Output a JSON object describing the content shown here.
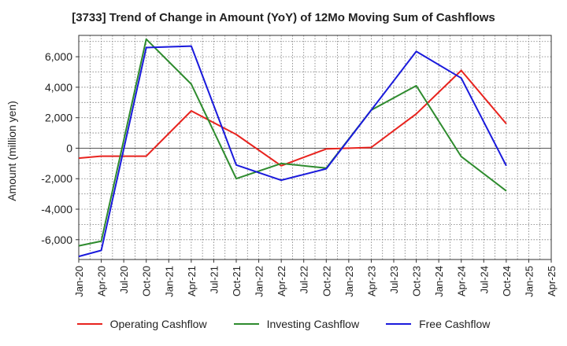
{
  "chart_data": {
    "type": "line",
    "title": "[3733]  Trend of Change in Amount (YoY) of 12Mo Moving Sum of Cashflows",
    "xlabel": "",
    "ylabel": "Amount (million yen)",
    "ylim": [
      -7300,
      7400
    ],
    "yticks": [
      -6000,
      -4000,
      -2000,
      0,
      2000,
      4000,
      6000
    ],
    "ytick_labels": [
      "-6,000",
      "-4,000",
      "-2,000",
      "0",
      "2,000",
      "4,000",
      "6,000"
    ],
    "categories": [
      "Jan-20",
      "Apr-20",
      "Jul-20",
      "Oct-20",
      "Jan-21",
      "Apr-21",
      "Jul-21",
      "Oct-21",
      "Jan-22",
      "Apr-22",
      "Jul-22",
      "Oct-22",
      "Jan-23",
      "Apr-23",
      "Jul-23",
      "Oct-23",
      "Jan-24",
      "Apr-24",
      "Jul-24",
      "Oct-24",
      "Jan-25",
      "Apr-25"
    ],
    "series": [
      {
        "name": "Operating Cashflow",
        "color": "#e8231e",
        "points": [
          [
            0,
            -650
          ],
          [
            1,
            -520
          ],
          [
            3,
            -520
          ],
          [
            5,
            2450
          ],
          [
            7,
            900
          ],
          [
            9,
            -1150
          ],
          [
            11,
            -50
          ],
          [
            13,
            50
          ],
          [
            15,
            2250
          ],
          [
            17,
            5100
          ],
          [
            19,
            1600
          ]
        ]
      },
      {
        "name": "Investing Cashflow",
        "color": "#2e8b2e",
        "points": [
          [
            0,
            -6400
          ],
          [
            1,
            -6100
          ],
          [
            3,
            7150
          ],
          [
            5,
            4200
          ],
          [
            7,
            -2000
          ],
          [
            9,
            -1000
          ],
          [
            11,
            -1300
          ],
          [
            13,
            2500
          ],
          [
            15,
            4100
          ],
          [
            17,
            -550
          ],
          [
            19,
            -2800
          ]
        ]
      },
      {
        "name": "Free Cashflow",
        "color": "#1a1adc",
        "points": [
          [
            0,
            -7100
          ],
          [
            1,
            -6700
          ],
          [
            3,
            6600
          ],
          [
            5,
            6700
          ],
          [
            7,
            -1100
          ],
          [
            9,
            -2100
          ],
          [
            11,
            -1350
          ],
          [
            13,
            2500
          ],
          [
            15,
            6350
          ],
          [
            17,
            4600
          ],
          [
            19,
            -1150
          ]
        ]
      }
    ],
    "grid": true,
    "legend_position": "bottom"
  }
}
